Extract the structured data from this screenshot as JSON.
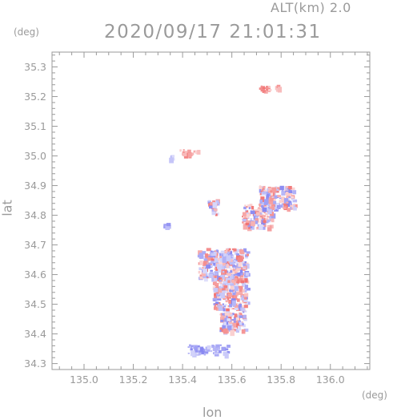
{
  "header": {
    "altitude_label": "ALT(km) 2.0",
    "datetime": "2020/09/17 21:01:31"
  },
  "axes": {
    "x_unit": "(deg)",
    "y_unit": "(deg)",
    "x_label": "lon",
    "y_label": "lat"
  },
  "chart_data": {
    "type": "heatmap",
    "title": "2020/09/17 21:01:31",
    "subtitle": "ALT(km) 2.0",
    "xlabel": "lon",
    "ylabel": "lat",
    "xlim": [
      134.87,
      136.16
    ],
    "ylim": [
      34.28,
      35.35
    ],
    "xticks": [
      "135.0",
      "135.2",
      "135.4",
      "135.6",
      "135.8",
      "136.0"
    ],
    "xtick_values": [
      135.0,
      135.2,
      135.4,
      135.6,
      135.8,
      136.0
    ],
    "yticks": [
      "34.3",
      "34.4",
      "34.5",
      "34.6",
      "34.7",
      "34.8",
      "34.9",
      "35.0",
      "35.1",
      "35.2",
      "35.3"
    ],
    "ytick_values": [
      34.3,
      34.4,
      34.5,
      34.6,
      34.7,
      34.8,
      34.9,
      35.0,
      35.1,
      35.2,
      35.3
    ],
    "grid": false,
    "colors": {
      "positive": "#f06a6a",
      "negative": "#7f7ff0",
      "frame": "#9a9a9a"
    },
    "clusters": [
      {
        "region": "north",
        "lon": 135.73,
        "lat": 35.23,
        "w": 0.05,
        "h": 0.02,
        "tone": "positive"
      },
      {
        "region": "north",
        "lon": 135.78,
        "lat": 35.235,
        "w": 0.02,
        "h": 0.01,
        "tone": "positive"
      },
      {
        "region": "northwest",
        "lon": 135.42,
        "lat": 35.015,
        "w": 0.08,
        "h": 0.02,
        "tone": "positive"
      },
      {
        "region": "northwest",
        "lon": 135.35,
        "lat": 35.0,
        "w": 0.015,
        "h": 0.015,
        "tone": "negative"
      },
      {
        "region": "east",
        "lon": 135.78,
        "lat": 34.86,
        "w": 0.14,
        "h": 0.08,
        "tone": "mixed"
      },
      {
        "region": "east",
        "lon": 135.7,
        "lat": 34.8,
        "w": 0.12,
        "h": 0.08,
        "tone": "mixed"
      },
      {
        "region": "middle",
        "lon": 135.52,
        "lat": 34.83,
        "w": 0.04,
        "h": 0.05,
        "tone": "mixed"
      },
      {
        "region": "west",
        "lon": 135.33,
        "lat": 34.77,
        "w": 0.02,
        "h": 0.015,
        "tone": "negative"
      },
      {
        "region": "central",
        "lon": 135.56,
        "lat": 34.64,
        "w": 0.2,
        "h": 0.1,
        "tone": "mixed"
      },
      {
        "region": "central",
        "lon": 135.59,
        "lat": 34.54,
        "w": 0.14,
        "h": 0.1,
        "tone": "mixed"
      },
      {
        "region": "central",
        "lon": 135.6,
        "lat": 34.45,
        "w": 0.1,
        "h": 0.08,
        "tone": "mixed"
      },
      {
        "region": "south",
        "lon": 135.5,
        "lat": 34.35,
        "w": 0.16,
        "h": 0.03,
        "tone": "negative"
      }
    ]
  }
}
